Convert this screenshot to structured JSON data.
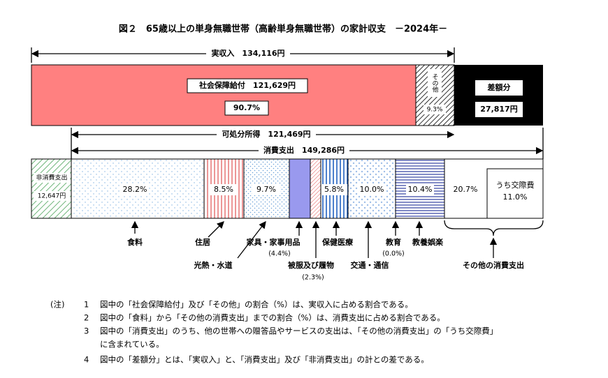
{
  "title": "図２　65歳以上の単身無職世帯（高齢単身無職世帯）の家計収支　－2024年－",
  "income": {
    "label": "実収入　134,116円",
    "social_security": {
      "label": "社会保障給付　121,629円",
      "share": "90.7%"
    },
    "other": {
      "label": "その他",
      "share": "9.3%"
    },
    "difference": {
      "label": "差額分",
      "amount": "27,817円"
    }
  },
  "disposable": {
    "label": "可処分所得　121,469円"
  },
  "consumption": {
    "label": "消費支出　149,286円"
  },
  "non_consumption": {
    "label": "非消費支出",
    "amount": "12,647円"
  },
  "segments": [
    {
      "label": "食料",
      "share": "28.2%"
    },
    {
      "label": "住居",
      "share": "8.5%"
    },
    {
      "label": "光熱・水道",
      "share": "9.7%"
    },
    {
      "label": "家具・家事用品",
      "share": "(4.4%)"
    },
    {
      "label": "被服及び履物",
      "share": "(2.3%)"
    },
    {
      "label": "保健医療",
      "share": "5.8%"
    },
    {
      "label": "交通・通信",
      "share": "10.0%"
    },
    {
      "label": "教育",
      "share": "(0.0%)"
    },
    {
      "label": "教養娯楽",
      "share": "10.4%"
    },
    {
      "label": "その他の消費支出",
      "share": "20.7%",
      "sub_label": "うち交際費",
      "sub_share": "11.0%"
    }
  ],
  "notes": {
    "head": "(注)",
    "items": [
      {
        "num": "1",
        "text": "図中の「社会保障給付」及び「その他」の割合（%）は、実収入に占める割合である。"
      },
      {
        "num": "2",
        "text": "図中の「食料」から「その他の消費支出」までの割合（%）は、消費支出に占める割合である。"
      },
      {
        "num": "3",
        "text": "図中の「消費支出」のうち、他の世帯への贈答品やサービスの支出は、「その他の消費支出」の「うち交際費」",
        "text2": "に含まれている。"
      },
      {
        "num": "4",
        "text": "図中の「差額分」とは、「実収入」と、「消費支出」及び「非消費支出」の計との差である。"
      }
    ]
  }
}
